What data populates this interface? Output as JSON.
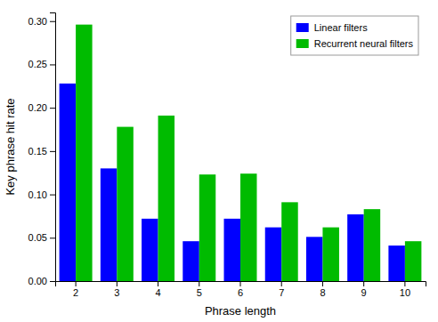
{
  "chart_data": {
    "type": "bar",
    "xlabel": "Phrase length",
    "ylabel": "Key phrase hit rate",
    "categories": [
      "2",
      "3",
      "4",
      "5",
      "6",
      "7",
      "8",
      "9",
      "10"
    ],
    "series": [
      {
        "name": "Linear filters",
        "color": "#0000ff",
        "values": [
          0.228,
          0.13,
          0.072,
          0.046,
          0.072,
          0.062,
          0.051,
          0.077,
          0.041
        ]
      },
      {
        "name": "Recurrent neural filters",
        "color": "#00bb00",
        "values": [
          0.296,
          0.178,
          0.191,
          0.123,
          0.124,
          0.091,
          0.062,
          0.083,
          0.046
        ]
      }
    ],
    "ylim": [
      0,
      0.31
    ],
    "yticks": [
      {
        "value": 0,
        "label": "0.00"
      },
      0.05,
      {
        "value": 0.1,
        "label": "0.10"
      },
      0.15,
      {
        "value": 0.2,
        "label": "0.20"
      },
      0.25,
      {
        "value": 0.3,
        "label": "0.30"
      }
    ],
    "grid": false,
    "legend": "upper right"
  }
}
